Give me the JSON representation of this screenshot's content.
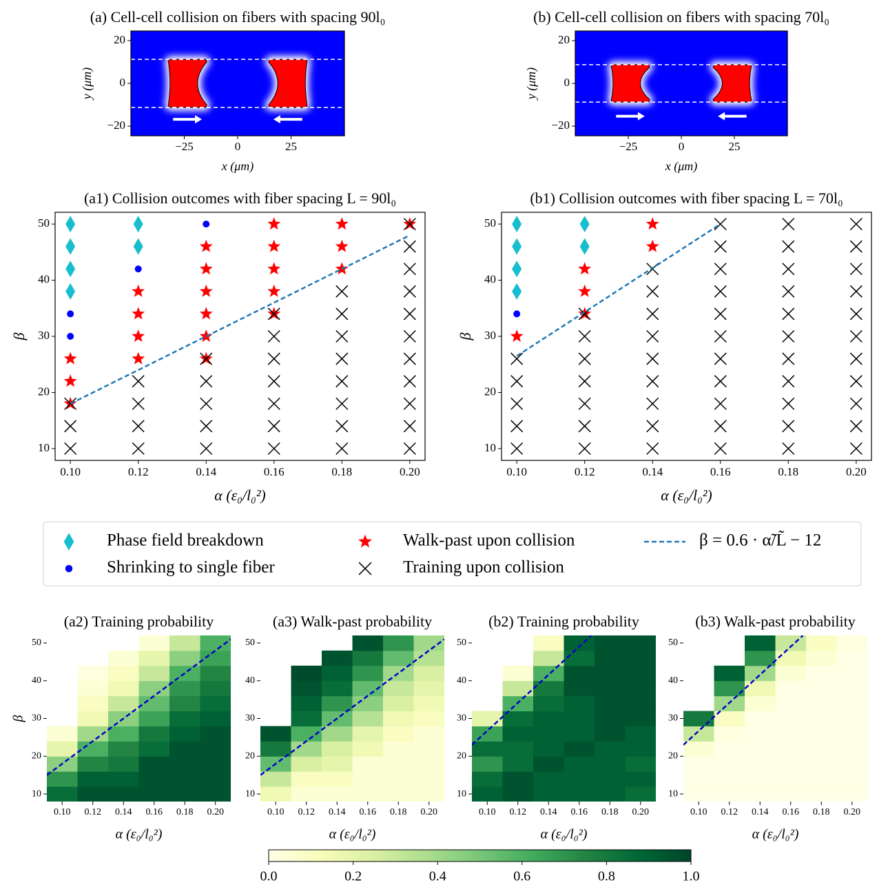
{
  "chart_data": [
    {
      "type": "image",
      "title": "(a) Cell-cell collision on fibers with spacing 90l₀",
      "xlabel": "x (μm)",
      "ylabel": "y (μm)",
      "xlim": [
        -50,
        50
      ],
      "ylim": [
        -24.5,
        24.5
      ],
      "xticks": [
        {
          "value": -25,
          "label": "−25"
        },
        0,
        25
      ],
      "yticks": [
        {
          "value": -20,
          "label": "−20"
        },
        0,
        20
      ],
      "fibers": [
        -11.25,
        11.25
      ],
      "cells_x": [
        -23.5,
        23.5
      ],
      "background": "#0000ff",
      "cell_color": "#ff0000"
    },
    {
      "type": "image",
      "title": "(b) Cell-cell collision on fibers with spacing 70l₀",
      "xlabel": "x (μm)",
      "ylabel": "y (μm)",
      "xlim": [
        -50,
        50
      ],
      "ylim": [
        -24.5,
        24.5
      ],
      "xticks": [
        {
          "value": -25,
          "label": "−25"
        },
        0,
        25
      ],
      "yticks": [
        {
          "value": -20,
          "label": "−20"
        },
        0,
        20
      ],
      "fibers": [
        -8.75,
        8.75
      ],
      "cells_x": [
        -24,
        24
      ],
      "background": "#0000ff",
      "cell_color": "#ff0000"
    },
    {
      "type": "scatter",
      "title": "(a1) Collision outcomes with fiber spacing L = 90l₀",
      "xlabel": "α (ε₀/l₀²)",
      "ylabel": "β",
      "xlim": [
        0.0955,
        0.2045
      ],
      "ylim": [
        7.9,
        52.1
      ],
      "xticks": [
        {
          "value": 0.1,
          "label": "0.10"
        },
        {
          "value": 0.12,
          "label": "0.12"
        },
        {
          "value": 0.14,
          "label": "0.14"
        },
        {
          "value": 0.16,
          "label": "0.16"
        },
        {
          "value": 0.18,
          "label": "0.18"
        },
        {
          "value": 0.2,
          "label": "0.20"
        }
      ],
      "yticks": [
        10,
        20,
        30,
        40,
        50
      ],
      "series": [
        {
          "name": "Phase field breakdown",
          "marker": "diamond",
          "color": "#17becf",
          "x": [
            0.1,
            0.1,
            0.1,
            0.1,
            0.12,
            0.12
          ],
          "y": [
            50,
            46,
            42,
            38,
            50,
            46
          ]
        },
        {
          "name": "Shrinking to single fiber",
          "marker": "dot",
          "color": "#0000ff",
          "x": [
            0.1,
            0.1,
            0.12,
            0.14
          ],
          "y": [
            34,
            30,
            42,
            50
          ]
        },
        {
          "name": "Walk-past upon collision",
          "marker": "star",
          "color": "#ff0000",
          "x": [
            0.1,
            0.1,
            0.1,
            0.12,
            0.12,
            0.12,
            0.12,
            0.14,
            0.14,
            0.14,
            0.14,
            0.14,
            0.14,
            0.16,
            0.16,
            0.16,
            0.16,
            0.16,
            0.18,
            0.18,
            0.18,
            0.2
          ],
          "y": [
            26,
            22,
            18,
            38,
            34,
            30,
            26,
            46,
            42,
            38,
            34,
            30,
            26,
            50,
            46,
            42,
            38,
            34,
            50,
            46,
            42,
            50
          ]
        },
        {
          "name": "Training upon collision",
          "marker": "x",
          "color": "#000000",
          "x": [
            0.1,
            0.1,
            0.1,
            0.12,
            0.12,
            0.12,
            0.12,
            0.14,
            0.14,
            0.14,
            0.14,
            0.14,
            0.16,
            0.16,
            0.16,
            0.16,
            0.16,
            0.16,
            0.16,
            0.18,
            0.18,
            0.18,
            0.18,
            0.18,
            0.18,
            0.18,
            0.18,
            0.2,
            0.2,
            0.2,
            0.2,
            0.2,
            0.2,
            0.2,
            0.2,
            0.2,
            0.2,
            0.2
          ],
          "y": [
            18,
            14,
            10,
            22,
            18,
            14,
            10,
            26,
            22,
            18,
            14,
            10,
            34,
            30,
            26,
            22,
            18,
            14,
            10,
            38,
            34,
            30,
            26,
            22,
            18,
            14,
            10,
            50,
            46,
            42,
            38,
            34,
            30,
            26,
            22,
            18,
            14,
            10
          ]
        },
        {
          "name": "β = 0.6 · α̃/L̃ − 12",
          "marker": "line",
          "color": "#1f77b4",
          "x": [
            0.1,
            0.2
          ],
          "y": [
            18,
            48
          ]
        }
      ]
    },
    {
      "type": "scatter",
      "title": "(b1) Collision outcomes with fiber spacing L = 70l₀",
      "xlabel": "α (ε₀/l₀²)",
      "ylabel": "β",
      "xlim": [
        0.0955,
        0.2045
      ],
      "ylim": [
        7.9,
        52.1
      ],
      "xticks": [
        {
          "value": 0.1,
          "label": "0.10"
        },
        {
          "value": 0.12,
          "label": "0.12"
        },
        {
          "value": 0.14,
          "label": "0.14"
        },
        {
          "value": 0.16,
          "label": "0.16"
        },
        {
          "value": 0.18,
          "label": "0.18"
        },
        {
          "value": 0.2,
          "label": "0.20"
        }
      ],
      "yticks": [
        10,
        20,
        30,
        40,
        50
      ],
      "series": [
        {
          "marker": "diamond",
          "color": "#17becf",
          "x": [
            0.1,
            0.1,
            0.1,
            0.1,
            0.12,
            0.12
          ],
          "y": [
            50,
            46,
            42,
            38,
            50,
            46
          ]
        },
        {
          "marker": "dot",
          "color": "#0000ff",
          "x": [
            0.1
          ],
          "y": [
            34
          ]
        },
        {
          "marker": "star",
          "color": "#ff0000",
          "x": [
            0.1,
            0.12,
            0.12,
            0.12,
            0.14,
            0.14
          ],
          "y": [
            30,
            42,
            38,
            34,
            50,
            46
          ]
        },
        {
          "marker": "x",
          "color": "#000000",
          "x": [
            0.1,
            0.1,
            0.1,
            0.1,
            0.1,
            0.12,
            0.12,
            0.12,
            0.12,
            0.12,
            0.12,
            0.12,
            0.14,
            0.14,
            0.14,
            0.14,
            0.14,
            0.14,
            0.14,
            0.14,
            0.14,
            0.16,
            0.16,
            0.16,
            0.16,
            0.16,
            0.16,
            0.16,
            0.16,
            0.16,
            0.16,
            0.16,
            0.18,
            0.18,
            0.18,
            0.18,
            0.18,
            0.18,
            0.18,
            0.18,
            0.18,
            0.18,
            0.18,
            0.2,
            0.2,
            0.2,
            0.2,
            0.2,
            0.2,
            0.2,
            0.2,
            0.2,
            0.2,
            0.2
          ],
          "y": [
            26,
            22,
            18,
            14,
            10,
            34,
            30,
            26,
            22,
            18,
            14,
            10,
            42,
            38,
            34,
            30,
            26,
            22,
            18,
            14,
            10,
            50,
            46,
            42,
            38,
            34,
            30,
            26,
            22,
            18,
            14,
            10,
            50,
            46,
            42,
            38,
            34,
            30,
            26,
            22,
            18,
            14,
            10,
            50,
            46,
            42,
            38,
            34,
            30,
            26,
            22,
            18,
            14,
            10
          ]
        },
        {
          "marker": "line",
          "color": "#1f77b4",
          "x": [
            0.1,
            0.16
          ],
          "y": [
            26.5,
            50
          ]
        }
      ]
    },
    {
      "type": "heatmap",
      "title": "(a2) Training probability",
      "xlabel": "α (ε₀/l₀²)",
      "ylabel": "β",
      "x": [
        0.1,
        0.12,
        0.14,
        0.16,
        0.18,
        0.2
      ],
      "y": [
        10,
        14,
        18,
        22,
        26,
        30,
        34,
        38,
        42,
        46,
        50
      ],
      "z": [
        [
          0.85,
          0.95,
          0.95,
          0.95,
          0.95,
          0.95
        ],
        [
          0.7,
          0.9,
          0.9,
          0.95,
          0.95,
          0.95
        ],
        [
          0.45,
          0.75,
          0.8,
          0.95,
          0.95,
          0.95
        ],
        [
          0.2,
          0.6,
          0.75,
          0.85,
          0.95,
          0.95
        ],
        [
          0.05,
          0.4,
          0.6,
          0.8,
          0.9,
          0.95
        ],
        [
          null,
          0.15,
          0.45,
          0.65,
          0.85,
          0.9
        ],
        [
          null,
          0.1,
          0.3,
          0.55,
          0.75,
          0.85
        ],
        [
          null,
          0.05,
          0.15,
          0.45,
          0.7,
          0.8
        ],
        [
          null,
          0.02,
          0.1,
          0.3,
          0.6,
          0.75
        ],
        [
          null,
          null,
          0.05,
          0.2,
          0.45,
          0.65
        ],
        [
          null,
          null,
          null,
          0.05,
          0.3,
          0.6
        ]
      ],
      "xlim": [
        0.09,
        0.21
      ],
      "ylim": [
        8,
        52
      ],
      "xticks": [
        {
          "value": 0.1,
          "label": "0.10"
        },
        {
          "value": 0.12,
          "label": "0.12"
        },
        {
          "value": 0.14,
          "label": "0.14"
        },
        {
          "value": 0.16,
          "label": "0.16"
        },
        {
          "value": 0.18,
          "label": "0.18"
        },
        {
          "value": 0.2,
          "label": "0.20"
        }
      ],
      "yticks": [
        10,
        20,
        30,
        40,
        50
      ],
      "fit": {
        "color": "#0000cd",
        "x": [
          0.09,
          0.21
        ],
        "y": [
          15,
          51
        ]
      }
    },
    {
      "type": "heatmap",
      "title": "(a3) Walk-past probability",
      "xlabel": "α (ε₀/l₀²)",
      "x": [
        0.1,
        0.12,
        0.14,
        0.16,
        0.18,
        0.2
      ],
      "y": [
        10,
        14,
        18,
        22,
        26,
        30,
        34,
        38,
        42,
        46,
        50
      ],
      "z": [
        [
          0.15,
          0.05,
          0.05,
          0.05,
          0.05,
          0.05
        ],
        [
          0.3,
          0.1,
          0.1,
          0.05,
          0.05,
          0.05
        ],
        [
          0.55,
          0.25,
          0.2,
          0.05,
          0.05,
          0.05
        ],
        [
          0.8,
          0.4,
          0.25,
          0.15,
          0.05,
          0.05
        ],
        [
          0.95,
          0.6,
          0.4,
          0.2,
          0.1,
          0.05
        ],
        [
          null,
          0.85,
          0.55,
          0.35,
          0.15,
          0.1
        ],
        [
          null,
          0.9,
          0.7,
          0.45,
          0.25,
          0.15
        ],
        [
          null,
          0.95,
          0.85,
          0.55,
          0.3,
          0.2
        ],
        [
          null,
          0.98,
          0.9,
          0.7,
          0.4,
          0.25
        ],
        [
          null,
          null,
          0.95,
          0.8,
          0.55,
          0.35
        ],
        [
          null,
          null,
          null,
          0.95,
          0.7,
          0.4
        ]
      ],
      "xlim": [
        0.09,
        0.21
      ],
      "ylim": [
        8,
        52
      ],
      "xticks": [
        {
          "value": 0.1,
          "label": "0.10"
        },
        {
          "value": 0.12,
          "label": "0.12"
        },
        {
          "value": 0.14,
          "label": "0.14"
        },
        {
          "value": 0.16,
          "label": "0.16"
        },
        {
          "value": 0.18,
          "label": "0.18"
        },
        {
          "value": 0.2,
          "label": "0.20"
        }
      ],
      "yticks": [
        10,
        20,
        30,
        40,
        50
      ],
      "fit": {
        "color": "#0000cd",
        "x": [
          0.09,
          0.21
        ],
        "y": [
          15,
          51
        ]
      }
    },
    {
      "type": "heatmap",
      "title": "(b2) Training probability",
      "xlabel": "α (ε₀/l₀²)",
      "x": [
        0.1,
        0.12,
        0.14,
        0.16,
        0.18,
        0.2
      ],
      "y": [
        10,
        14,
        18,
        22,
        26,
        30,
        34,
        38,
        42,
        46,
        50
      ],
      "z": [
        [
          0.9,
          0.95,
          0.9,
          0.9,
          0.9,
          0.85
        ],
        [
          0.85,
          0.95,
          0.9,
          0.9,
          0.9,
          0.9
        ],
        [
          0.7,
          0.85,
          0.95,
          0.9,
          0.9,
          0.85
        ],
        [
          0.85,
          0.85,
          0.9,
          0.95,
          0.9,
          0.9
        ],
        [
          0.65,
          0.9,
          0.9,
          0.9,
          0.95,
          0.9
        ],
        [
          0.2,
          0.85,
          0.9,
          0.9,
          0.95,
          0.95
        ],
        [
          null,
          0.6,
          0.85,
          0.9,
          0.95,
          0.95
        ],
        [
          null,
          0.3,
          0.8,
          0.95,
          0.95,
          0.95
        ],
        [
          null,
          0.05,
          0.6,
          0.95,
          0.95,
          0.95
        ],
        [
          null,
          null,
          0.3,
          0.85,
          0.95,
          0.95
        ],
        [
          null,
          null,
          0.1,
          0.9,
          0.95,
          0.95
        ]
      ],
      "xlim": [
        0.09,
        0.21
      ],
      "ylim": [
        8,
        52
      ],
      "xticks": [
        {
          "value": 0.1,
          "label": "0.10"
        },
        {
          "value": 0.12,
          "label": "0.12"
        },
        {
          "value": 0.14,
          "label": "0.14"
        },
        {
          "value": 0.16,
          "label": "0.16"
        },
        {
          "value": 0.18,
          "label": "0.18"
        },
        {
          "value": 0.2,
          "label": "0.20"
        }
      ],
      "yticks": [
        10,
        20,
        30,
        40,
        50
      ],
      "fit": {
        "color": "#0000cd",
        "x": [
          0.09,
          0.168
        ],
        "y": [
          23,
          52
        ]
      }
    },
    {
      "type": "heatmap",
      "title": "(b3) Walk-past probability",
      "xlabel": "α (ε₀/l₀²)",
      "x": [
        0.1,
        0.12,
        0.14,
        0.16,
        0.18,
        0.2
      ],
      "y": [
        10,
        14,
        18,
        22,
        26,
        30,
        34,
        38,
        42,
        46,
        50
      ],
      "z": [
        [
          0,
          0,
          0,
          0,
          0,
          0
        ],
        [
          0,
          0,
          0,
          0,
          0,
          0
        ],
        [
          0,
          0,
          0,
          0,
          0,
          0
        ],
        [
          0.05,
          0,
          0,
          0,
          0,
          0
        ],
        [
          0.3,
          0.02,
          0,
          0,
          0,
          0
        ],
        [
          0.8,
          0.1,
          0,
          0,
          0,
          0
        ],
        [
          null,
          0.4,
          0.05,
          0,
          0,
          0
        ],
        [
          null,
          0.7,
          0.15,
          0,
          0,
          0
        ],
        [
          null,
          0.9,
          0.4,
          0.05,
          0,
          0
        ],
        [
          null,
          null,
          0.7,
          0.15,
          0.05,
          0
        ],
        [
          null,
          null,
          0.9,
          0.3,
          0.1,
          0.02
        ]
      ],
      "xlim": [
        0.09,
        0.21
      ],
      "ylim": [
        8,
        52
      ],
      "xticks": [
        {
          "value": 0.1,
          "label": "0.10"
        },
        {
          "value": 0.12,
          "label": "0.12"
        },
        {
          "value": 0.14,
          "label": "0.14"
        },
        {
          "value": 0.16,
          "label": "0.16"
        },
        {
          "value": 0.18,
          "label": "0.18"
        },
        {
          "value": 0.2,
          "label": "0.20"
        }
      ],
      "yticks": [
        10,
        20,
        30,
        40,
        50
      ],
      "fit": {
        "color": "#0000cd",
        "x": [
          0.09,
          0.168
        ],
        "y": [
          23,
          52
        ]
      }
    },
    {
      "type": "colorbar",
      "xlim": [
        0,
        1
      ],
      "xticks": [
        {
          "value": 0,
          "label": "0.0"
        },
        0.2,
        0.4,
        0.6,
        0.8,
        {
          "value": 1,
          "label": "1.0"
        }
      ],
      "colormap": [
        "#ffffe5",
        "#f7fcb9",
        "#d9f0a3",
        "#addd8e",
        "#78c679",
        "#41ab5d",
        "#238443",
        "#006837",
        "#004529"
      ]
    }
  ]
}
